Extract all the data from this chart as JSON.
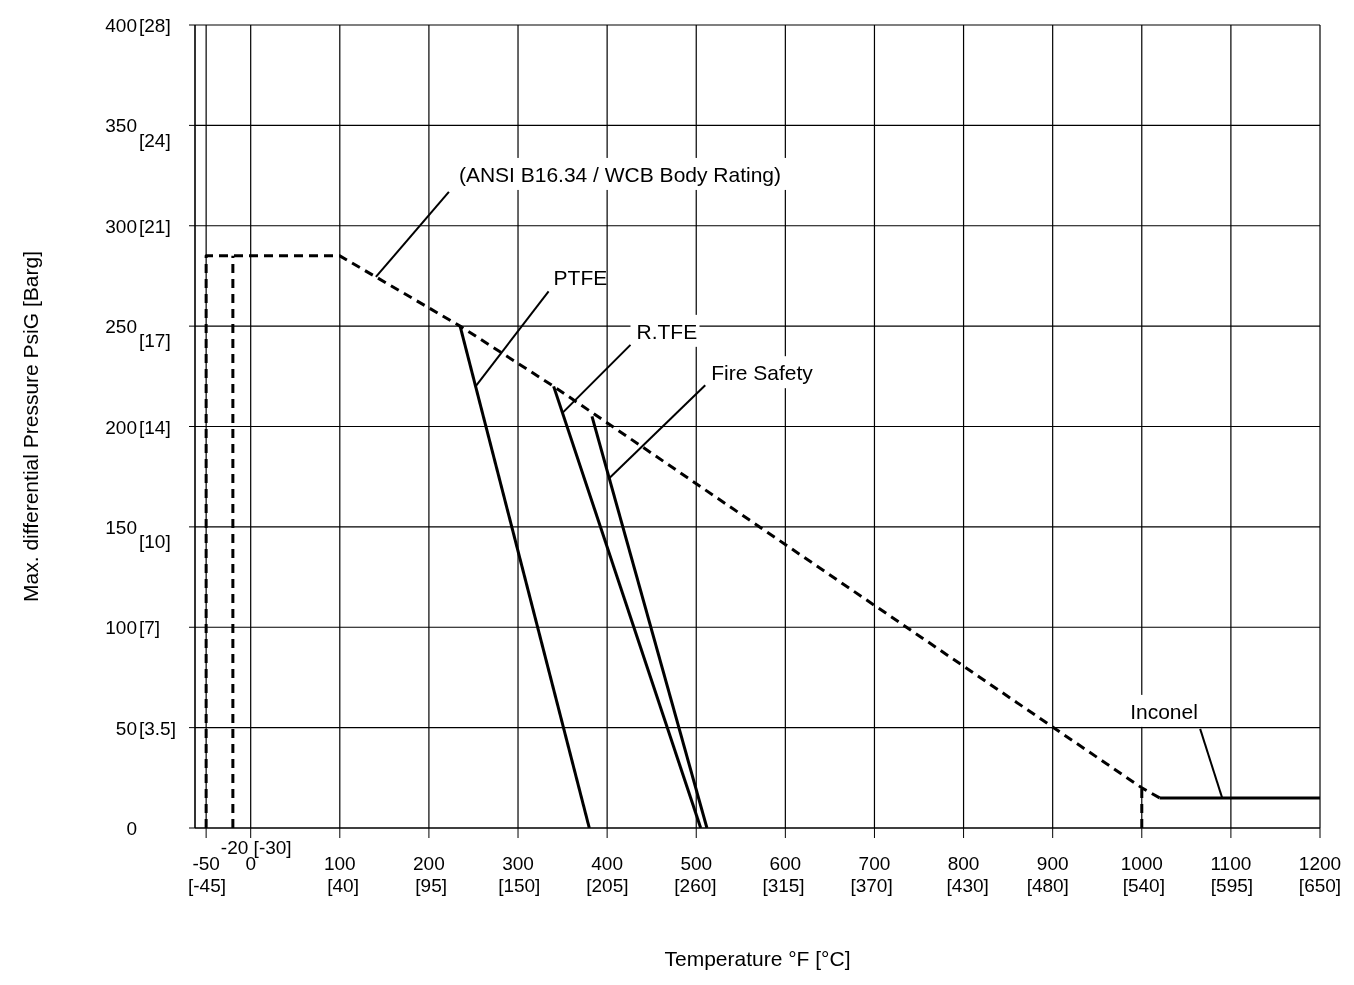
{
  "chart_data": {
    "type": "line",
    "xlabel": "Temperature °F [°C]",
    "ylabel": "Max. differential Pressure PsiG [Barg]",
    "xlim": [
      -62.5,
      1200
    ],
    "xticks": [
      -50,
      0,
      100,
      200,
      300,
      400,
      500,
      600,
      700,
      800,
      900,
      1000,
      1100,
      1200
    ],
    "x2lim": [
      -52.5,
      650
    ],
    "x2ticks": [
      {
        "value": -45,
        "label": "[-45]"
      },
      {
        "value": 40,
        "label": "[40]"
      },
      {
        "value": 95,
        "label": "[95]"
      },
      {
        "value": 150,
        "label": "[150]"
      },
      {
        "value": 205,
        "label": "[205]"
      },
      {
        "value": 260,
        "label": "[260]"
      },
      {
        "value": 315,
        "label": "[315]"
      },
      {
        "value": 370,
        "label": "[370]"
      },
      {
        "value": 430,
        "label": "[430]"
      },
      {
        "value": 480,
        "label": "[480]"
      },
      {
        "value": 540,
        "label": "[540]"
      },
      {
        "value": 595,
        "label": "[595]"
      },
      {
        "value": 650,
        "label": "[650]"
      }
    ],
    "ylim": [
      0,
      400
    ],
    "yticks": [
      0,
      50,
      100,
      150,
      200,
      250,
      300,
      350,
      400
    ],
    "y2lim": [
      0,
      28
    ],
    "y2ticks": [
      {
        "value": 3.5,
        "label": "[3.5]"
      },
      {
        "value": 7,
        "label": "[7]"
      },
      {
        "value": 10,
        "label": "[10]"
      },
      {
        "value": 14,
        "label": "[14]"
      },
      {
        "value": 17,
        "label": "[17]"
      },
      {
        "value": 21,
        "label": "[21]"
      },
      {
        "value": 24,
        "label": "[24]"
      },
      {
        "value": 28,
        "label": "[28]"
      }
    ],
    "grid": true,
    "legend": false,
    "marker": "none",
    "series": [
      {
        "name": "(ANSI B16.34 / WCB Body Rating)",
        "color": "#000000",
        "line_style": "dashed",
        "x": [
          -50,
          -50,
          100,
          235,
          340,
          1000,
          1020
        ],
        "values": [
          0,
          285,
          285,
          250,
          220,
          20,
          15
        ]
      },
      {
        "name": "PTFE",
        "color": "#000000",
        "line_style": "solid",
        "x": [
          235,
          380
        ],
        "values": [
          250,
          0
        ]
      },
      {
        "name": "R.TFE",
        "color": "#000000",
        "line_style": "solid",
        "x": [
          340,
          505
        ],
        "values": [
          220,
          0
        ]
      },
      {
        "name": "Fire Safety",
        "color": "#000000",
        "line_style": "solid",
        "x": [
          383,
          512
        ],
        "values": [
          205,
          0
        ]
      },
      {
        "name": "Inconel",
        "color": "#000000",
        "line_style": "solid",
        "x": [
          1020,
          1200
        ],
        "values": [
          15,
          15
        ]
      },
      {
        "color": "#000000",
        "line_style": "dashed",
        "x": [
          -20,
          -20
        ],
        "values": [
          0,
          285
        ]
      },
      {
        "color": "#000000",
        "line_style": "dashed",
        "x": [
          1000,
          1000
        ],
        "values": [
          0,
          20
        ]
      }
    ],
    "annotations": [
      {
        "text": "-20 [-30]",
        "x": -20,
        "y": 0
      }
    ]
  }
}
